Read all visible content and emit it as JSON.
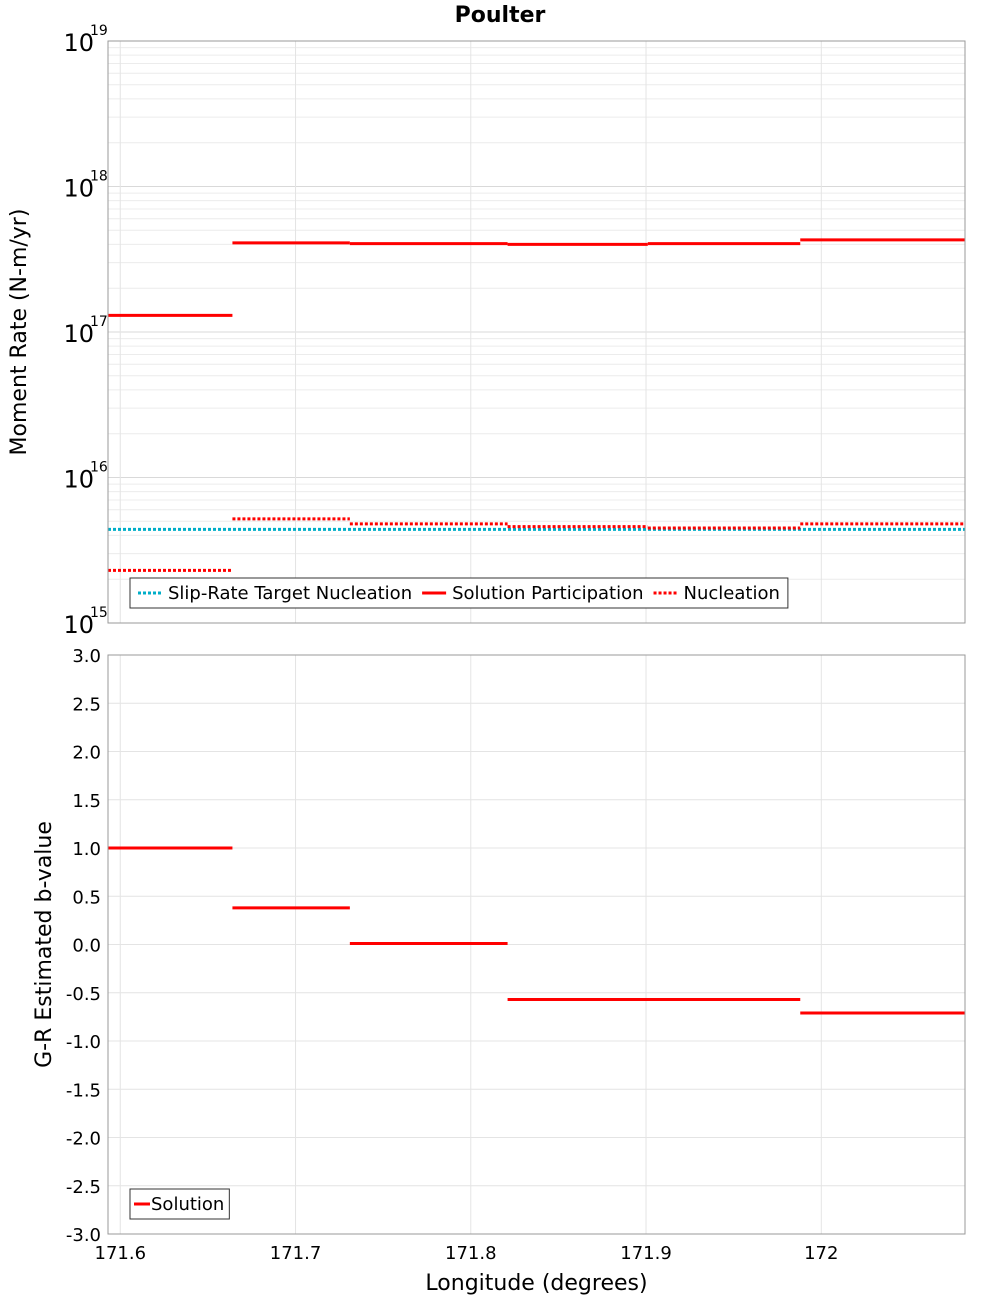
{
  "chart_data": [
    {
      "type": "line",
      "title": "Poulter",
      "ylabel": "Moment Rate (N-m/yr)",
      "xlabel": "",
      "yscale": "log",
      "ylim": [
        1000000000000000.0,
        1e+19
      ],
      "xlim": [
        171.593,
        172.082
      ],
      "ytick_labels": [
        {
          "v": 1000000000000000.0,
          "base": "10",
          "exp": "15"
        },
        {
          "v": 1e+16,
          "base": "10",
          "exp": "16"
        },
        {
          "v": 1e+17,
          "base": "10",
          "exp": "17"
        },
        {
          "v": 1e+18,
          "base": "10",
          "exp": "18"
        },
        {
          "v": 1e+19,
          "base": "10",
          "exp": "19"
        }
      ],
      "legend": "bottom-left",
      "series": [
        {
          "name": "Slip-Rate Target Nucleation",
          "color": "#00aec8",
          "dash": "dotted",
          "segments": [
            [
              171.593,
              172.082,
              4400000000000000.0
            ]
          ]
        },
        {
          "name": "Solution Participation",
          "color": "#ff0000",
          "dash": "solid",
          "segments": [
            [
              171.593,
              171.664,
              1.3e+17
            ],
            [
              171.664,
              171.731,
              4.1e+17
            ],
            [
              171.731,
              171.821,
              4.05e+17
            ],
            [
              171.821,
              171.901,
              4e+17
            ],
            [
              171.901,
              171.988,
              4.05e+17
            ],
            [
              171.988,
              172.082,
              4.3e+17
            ]
          ]
        },
        {
          "name": "Nucleation",
          "color": "#ff0000",
          "dash": "dotted",
          "segments": [
            [
              171.593,
              171.664,
              2300000000000000.0
            ],
            [
              171.664,
              171.731,
              5200000000000000.0
            ],
            [
              171.731,
              171.821,
              4800000000000000.0
            ],
            [
              171.821,
              171.901,
              4600000000000000.0
            ],
            [
              171.901,
              171.988,
              4500000000000000.0
            ],
            [
              171.988,
              172.082,
              4800000000000000.0
            ]
          ]
        }
      ]
    },
    {
      "type": "line",
      "title": "",
      "ylabel": "G-R Estimated b-value",
      "xlabel": "Longitude (degrees)",
      "ylim": [
        -3.0,
        3.0
      ],
      "xlim": [
        171.593,
        172.082
      ],
      "yticks": [
        "-3.0",
        "-2.5",
        "-2.0",
        "-1.5",
        "-1.0",
        "-0.5",
        "0.0",
        "0.5",
        "1.0",
        "1.5",
        "2.0",
        "2.5",
        "3.0"
      ],
      "xticks": [
        "171.6",
        "171.7",
        "171.8",
        "171.9",
        "172"
      ],
      "legend": "bottom-left",
      "series": [
        {
          "name": "Solution",
          "color": "#ff0000",
          "dash": "solid",
          "segments": [
            [
              171.593,
              171.664,
              1.0
            ],
            [
              171.664,
              171.731,
              0.38
            ],
            [
              171.731,
              171.821,
              0.01
            ],
            [
              171.821,
              171.988,
              -0.57
            ],
            [
              171.988,
              172.082,
              -0.71
            ]
          ]
        }
      ]
    }
  ]
}
